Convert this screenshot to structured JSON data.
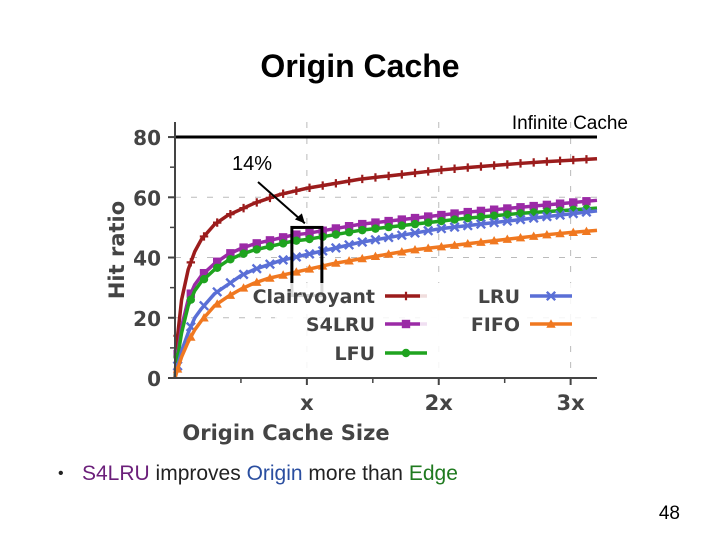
{
  "slide": {
    "title": "Origin Cache",
    "page_number": "48"
  },
  "bullet": {
    "part1": "S4LRU",
    "part2": " improves ",
    "part3": "Origin",
    "part4": " more than ",
    "part5": "Edge",
    "colors": {
      "s4lru": "#6b1f7a",
      "origin": "#2a4ea0",
      "edge": "#1f7a1f"
    }
  },
  "chart_data": {
    "type": "line",
    "title": "Origin Cache",
    "xlabel": "Origin Cache Size",
    "ylabel": "Hit ratio",
    "x_ticks": [
      "x",
      "2x",
      "3x"
    ],
    "y_ticks": [
      "0",
      "20",
      "40",
      "60",
      "80"
    ],
    "xlim": [
      0,
      3.2
    ],
    "ylim": [
      0,
      85
    ],
    "grid": true,
    "reference_line": {
      "label": "Infinite Cache",
      "value": 80
    },
    "annotation": {
      "label": "14%",
      "x": 1,
      "from": 34,
      "to": 48
    },
    "legend_position": "bottom-center",
    "x": [
      0.02,
      0.05,
      0.1,
      0.15,
      0.2,
      0.3,
      0.4,
      0.5,
      0.6,
      0.7,
      0.8,
      0.9,
      1.0,
      1.2,
      1.4,
      1.6,
      1.8,
      2.0,
      2.2,
      2.4,
      2.6,
      2.8,
      3.0,
      3.2
    ],
    "series": [
      {
        "name": "Clairvoyant",
        "color": "#9b1c1c",
        "marker": "plus",
        "values": [
          14,
          26,
          36,
          42,
          46,
          51,
          54,
          56,
          58,
          59.5,
          61,
          62,
          63,
          64.5,
          66,
          67,
          68,
          69,
          69.8,
          70.5,
          71.2,
          71.8,
          72.3,
          72.8
        ]
      },
      {
        "name": "S4LRU",
        "color": "#9b2aa6",
        "marker": "square",
        "values": [
          8,
          17,
          26,
          31,
          34,
          38,
          41,
          43,
          44.5,
          45.5,
          46.5,
          47.5,
          48,
          49.5,
          51,
          52,
          53,
          54,
          55,
          55.8,
          56.6,
          57.4,
          58.2,
          59
        ]
      },
      {
        "name": "LFU",
        "color": "#1fa31f",
        "marker": "circle",
        "values": [
          7,
          15,
          24,
          29,
          32,
          36,
          39,
          41,
          42.5,
          43.5,
          44.5,
          45.5,
          46,
          47.5,
          49,
          50,
          51,
          52,
          53,
          53.8,
          54.6,
          55.2,
          55.8,
          56.4
        ]
      },
      {
        "name": "LRU",
        "color": "#5a6fd6",
        "marker": "x",
        "values": [
          4,
          9,
          15,
          20,
          23,
          28,
          31,
          34,
          36,
          37.5,
          39,
          40,
          41,
          43,
          45,
          46.5,
          48,
          49.5,
          50.5,
          51.5,
          52.5,
          53.5,
          54.5,
          55.5
        ]
      },
      {
        "name": "FIFO",
        "color": "#f07820",
        "marker": "triangle",
        "values": [
          3,
          7,
          12,
          16,
          19,
          24,
          27,
          29.5,
          31.5,
          33,
          34,
          35,
          36,
          38,
          39.5,
          41,
          42.5,
          43.5,
          44.5,
          45.5,
          46.5,
          47.5,
          48.3,
          49
        ]
      }
    ]
  }
}
